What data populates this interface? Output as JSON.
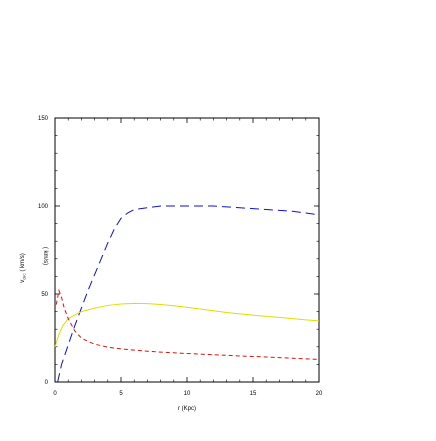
{
  "chart_data": {
    "type": "line",
    "title": "",
    "xlabel": "r (Kpc)",
    "ylabel_main": "v",
    "ylabel_sub": "circ",
    "ylabel_units": "( km/s)",
    "ylabel_mirror": "( km/s)",
    "xlim": [
      0,
      20
    ],
    "ylim": [
      0,
      150
    ],
    "x_ticks": [
      0,
      5,
      10,
      15,
      20
    ],
    "y_ticks": [
      0,
      50,
      100,
      150
    ],
    "x_tick_labels": [
      "0",
      "5",
      "10",
      "15",
      "20"
    ],
    "y_tick_labels": [
      "0",
      "50",
      "100",
      "150"
    ],
    "grid": false,
    "legend": "none",
    "series": [
      {
        "color": "#1010c8",
        "style": "long-dash",
        "x": [
          0.2,
          0.5,
          1.0,
          1.5,
          2.0,
          2.5,
          3.0,
          3.5,
          4.0,
          4.5,
          5.0,
          5.5,
          6.0,
          7.0,
          8.0,
          9.0,
          10.0,
          11.0,
          12.0,
          13.0,
          14.0,
          15.0,
          16.0,
          17.0,
          18.0,
          19.0,
          20.0
        ],
        "y": [
          0,
          10,
          21,
          32,
          42,
          52,
          61,
          70,
          79,
          87,
          93,
          96,
          98,
          99,
          100,
          100,
          100,
          100,
          100,
          99.5,
          99,
          98.5,
          98,
          97.5,
          97,
          96,
          95
        ]
      },
      {
        "color": "#dede00",
        "style": "solid",
        "x": [
          0.0,
          0.3,
          0.6,
          1.0,
          1.5,
          2.0,
          2.5,
          3.0,
          4.0,
          5.0,
          6.0,
          7.0,
          8.0,
          9.0,
          10.0,
          11.0,
          12.0,
          13.0,
          14.0,
          15.0,
          16.0,
          17.0,
          18.0,
          19.0,
          20.0
        ],
        "y": [
          20,
          27,
          32,
          36,
          38,
          40,
          41,
          42,
          43.5,
          44.3,
          44.7,
          44.5,
          44,
          43.3,
          42.5,
          41.5,
          40.5,
          39.5,
          38.7,
          38,
          37.3,
          36.7,
          36,
          35.3,
          34.7
        ]
      },
      {
        "color": "#e01010",
        "style": "short-dash",
        "x": [
          0.1,
          0.3,
          0.5,
          0.7,
          1.0,
          1.5,
          2.0,
          2.5,
          3.0,
          4.0,
          5.0,
          6.0,
          7.0,
          8.0,
          9.0,
          10.0,
          12.0,
          14.0,
          16.0,
          18.0,
          20.0
        ],
        "y": [
          44,
          52,
          48,
          42,
          36,
          29,
          25,
          23,
          21.5,
          19.8,
          18.8,
          18.1,
          17.5,
          17.0,
          16.6,
          16.2,
          15.5,
          14.8,
          14.2,
          13.5,
          12.8
        ]
      }
    ]
  }
}
